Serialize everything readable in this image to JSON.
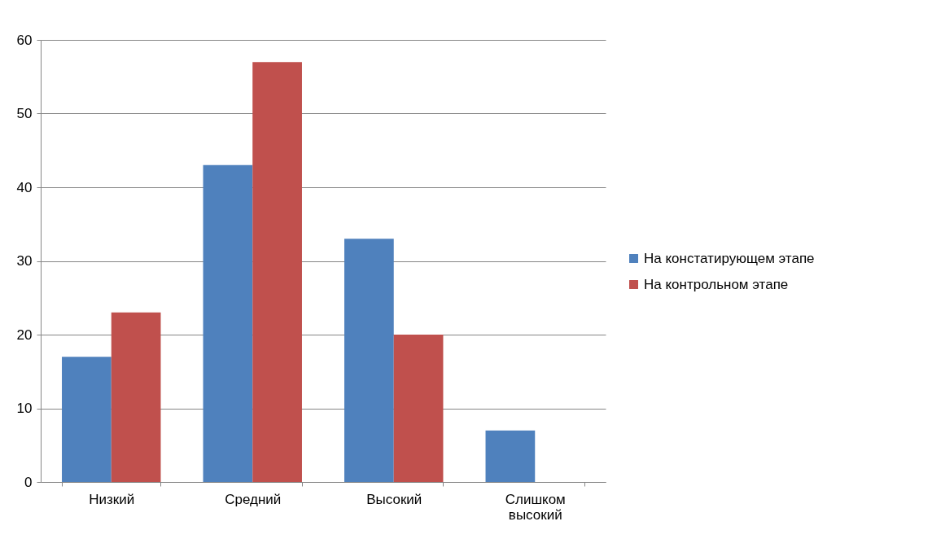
{
  "chart_data": {
    "type": "bar",
    "categories": [
      "Низкий",
      "Средний",
      "Высокий",
      "Слишком высокий"
    ],
    "series": [
      {
        "name": "На констатирующем этапе",
        "color": "#4f81bd",
        "values": [
          17,
          43,
          33,
          7
        ]
      },
      {
        "name": "На контрольном этапе",
        "color": "#c0504d",
        "values": [
          23,
          57,
          20,
          null
        ]
      }
    ],
    "ylim": [
      0,
      60
    ],
    "yticks": [
      0,
      10,
      20,
      30,
      40,
      50,
      60
    ],
    "grid": "y",
    "legend": "right"
  }
}
